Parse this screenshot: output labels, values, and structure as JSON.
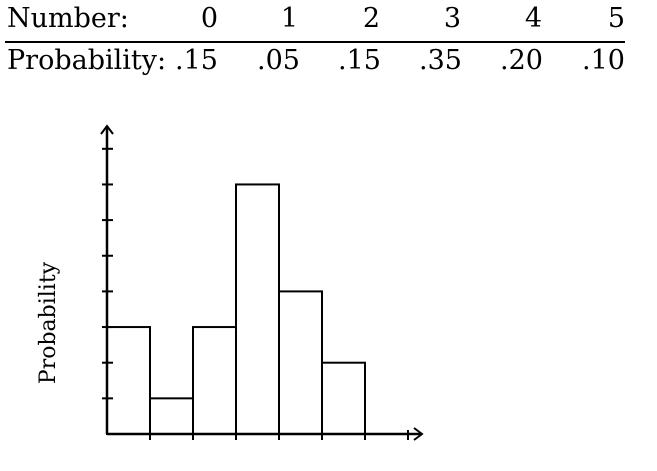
{
  "table": {
    "row_label_number": "Number:",
    "row_label_probability": "Probability:",
    "numbers": [
      "0",
      "1",
      "2",
      "3",
      "4",
      "5"
    ],
    "probabilities": [
      ".15",
      ".05",
      ".15",
      ".35",
      ".20",
      ".10"
    ]
  },
  "chart_data": {
    "type": "bar",
    "categories": [
      "0",
      "1",
      "2",
      "3",
      "4",
      "5"
    ],
    "values": [
      0.15,
      0.05,
      0.15,
      0.35,
      0.2,
      0.1
    ],
    "title": "",
    "xlabel": "",
    "ylabel": "Probability",
    "ylim": [
      0,
      0.4
    ],
    "y_tick_step": 0.05,
    "show_tick_labels": false,
    "grid": false,
    "bar_fill": "#ffffff",
    "bar_stroke": "#000000"
  }
}
